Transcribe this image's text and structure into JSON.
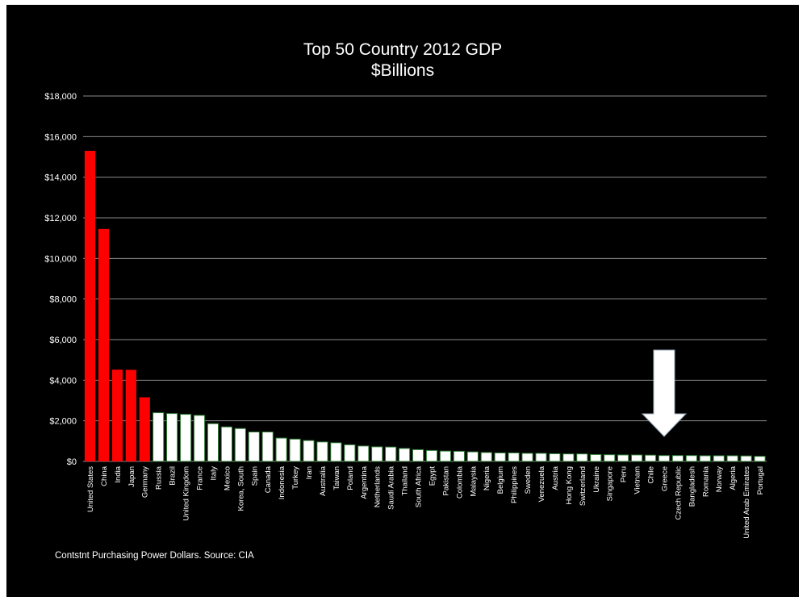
{
  "chart_data": {
    "type": "bar",
    "title": "Top 50 Country 2012 GDP",
    "subtitle": "$Billions",
    "footnote": "Contstnt Purchasing Power Dollars.  Source: CIA",
    "ylim": [
      0,
      18000
    ],
    "yticks": [
      "$0",
      "$2,000",
      "$4,000",
      "$6,000",
      "$8,000",
      "$10,000",
      "$12,000",
      "$14,000",
      "$16,000",
      "$18,000"
    ],
    "ytick_values": [
      0,
      2000,
      4000,
      6000,
      8000,
      10000,
      12000,
      14000,
      16000,
      18000
    ],
    "grid": true,
    "categories": [
      "United States",
      "China",
      "India",
      "Japan",
      "Germany",
      "Russia",
      "Brazil",
      "United Kingdom",
      "France",
      "Italy",
      "Mexico",
      "Korea, South",
      "Spain",
      "Canada",
      "Indonesia",
      "Turkey",
      "Iran",
      "Australia",
      "Taiwan",
      "Poland",
      "Argentina",
      "Netherlands",
      "Saudi Arabia",
      "Thailand",
      "South Africa",
      "Egypt",
      "Pakistan",
      "Colombia",
      "Malaysia",
      "Nigeria",
      "Belgium",
      "Philippines",
      "Sweden",
      "Venezuela",
      "Austria",
      "Hong Kong",
      "Switzerland",
      "Ukraine",
      "Singapore",
      "Peru",
      "Vietnam",
      "Chile",
      "Greece",
      "Czech Republic",
      "Bangladesh",
      "Romania",
      "Norway",
      "Algeria",
      "United Arab Emirates",
      "Portugal"
    ],
    "values": [
      15300,
      11450,
      4520,
      4510,
      3160,
      2400,
      2360,
      2320,
      2270,
      1860,
      1700,
      1620,
      1450,
      1450,
      1150,
      1100,
      1030,
      960,
      920,
      820,
      760,
      720,
      710,
      640,
      580,
      540,
      510,
      500,
      470,
      440,
      420,
      420,
      400,
      400,
      380,
      370,
      370,
      340,
      330,
      320,
      320,
      310,
      290,
      290,
      290,
      280,
      280,
      280,
      270,
      250
    ],
    "bar_colors": [
      "#ff0000",
      "#ff0000",
      "#ff0000",
      "#ff0000",
      "#ff0000",
      "#ffffff",
      "#ffffff",
      "#ffffff",
      "#ffffff",
      "#ffffff",
      "#ffffff",
      "#ffffff",
      "#ffffff",
      "#ffffff",
      "#ffffff",
      "#ffffff",
      "#ffffff",
      "#ffffff",
      "#ffffff",
      "#ffffff",
      "#ffffff",
      "#ffffff",
      "#ffffff",
      "#ffffff",
      "#ffffff",
      "#ffffff",
      "#ffffff",
      "#ffffff",
      "#ffffff",
      "#ffffff",
      "#ffffff",
      "#ffffff",
      "#ffffff",
      "#ffffff",
      "#ffffff",
      "#ffffff",
      "#ffffff",
      "#ffffff",
      "#ffffff",
      "#ffffff",
      "#ffffff",
      "#ffffff",
      "#ffffff",
      "#ffffff",
      "#ffffff",
      "#ffffff",
      "#ffffff",
      "#ffffff",
      "#ffffff",
      "#ffffff"
    ],
    "colors": {
      "background": "#000000",
      "highlight": "#ff0000",
      "default": "#ffffff",
      "bar_outline": "#2e7d32",
      "gridline": "#8a8a8a",
      "arrow": "#ffffff"
    },
    "annotations": [
      {
        "type": "arrow",
        "direction": "down",
        "icon": "down-arrow-icon",
        "points_to_category": "Greece"
      }
    ]
  }
}
